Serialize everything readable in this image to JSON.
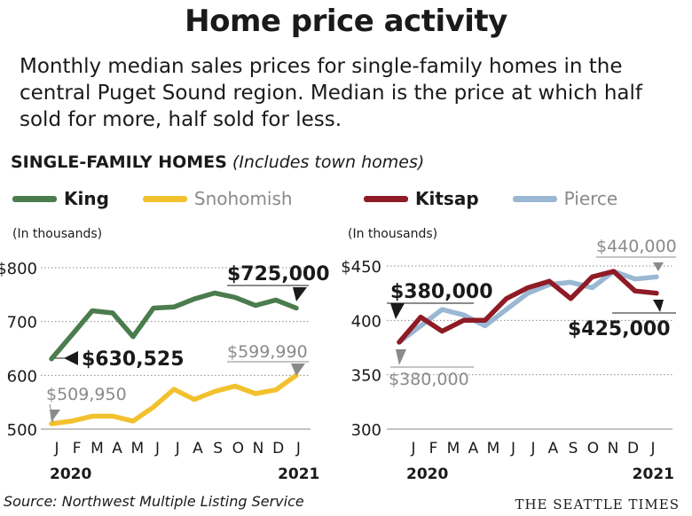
{
  "title": "Home price activity",
  "subtitle": "Monthly median sales prices for single-family homes in the central Puget Sound region. Median is the price at which half sold for more, half sold for less.",
  "section_label": "SINGLE-FAMILY HOMES",
  "section_note": "(Includes town homes)",
  "source": "Source: Northwest Multiple Listing Service",
  "brand": "THE SEATTLE TIMES",
  "colors": {
    "King": "#4a7c4e",
    "Snohomish": "#f2c12e",
    "Kitsap": "#8e1b25",
    "Pierce": "#9ab7d3",
    "grid": "#8a8a8a"
  },
  "chart_data": [
    {
      "type": "line",
      "unit_label": "(In thousands)",
      "ylim": [
        500,
        800
      ],
      "y_ticks": [
        500,
        600,
        700,
        800
      ],
      "y_tick_labels": [
        "500",
        "600",
        "700",
        "$800"
      ],
      "x": [
        "J",
        "F",
        "M",
        "A",
        "M",
        "J",
        "J",
        "A",
        "S",
        "O",
        "N",
        "D",
        "J"
      ],
      "year_labels": [
        "2020",
        "2021"
      ],
      "series": [
        {
          "name": "King",
          "values": [
            630.525,
            675,
            720,
            716,
            672,
            725,
            727,
            742,
            753,
            745,
            730,
            740,
            725
          ]
        },
        {
          "name": "Snohomish",
          "values": [
            509.95,
            515,
            524,
            524,
            515,
            541,
            574,
            555,
            570,
            580,
            566,
            573,
            599.99
          ]
        }
      ],
      "annotations": [
        {
          "series": "King",
          "point": "start",
          "label": "$630,525"
        },
        {
          "series": "King",
          "point": "end",
          "label": "$725,000"
        },
        {
          "series": "Snohomish",
          "point": "start",
          "label": "$509,950"
        },
        {
          "series": "Snohomish",
          "point": "end",
          "label": "$599,990"
        }
      ]
    },
    {
      "type": "line",
      "unit_label": "(In thousands)",
      "ylim": [
        300,
        450
      ],
      "y_ticks": [
        300,
        350,
        400,
        450
      ],
      "y_tick_labels": [
        "300",
        "350",
        "400",
        "$450"
      ],
      "x": [
        "J",
        "F",
        "M",
        "A",
        "M",
        "J",
        "J",
        "A",
        "S",
        "O",
        "N",
        "D",
        "J"
      ],
      "year_labels": [
        "2020",
        "2021"
      ],
      "series": [
        {
          "name": "Kitsap",
          "values": [
            380,
            403,
            390,
            400,
            400,
            420,
            430,
            436,
            420,
            440,
            445,
            427,
            425
          ]
        },
        {
          "name": "Pierce",
          "values": [
            380,
            395,
            410,
            405,
            395,
            410,
            425,
            433,
            435,
            430,
            445,
            438,
            440
          ]
        }
      ],
      "annotations": [
        {
          "series": "Kitsap",
          "point": "start",
          "label": "$380,000"
        },
        {
          "series": "Kitsap",
          "point": "end",
          "label": "$425,000"
        },
        {
          "series": "Pierce",
          "point": "start",
          "label": "$380,000"
        },
        {
          "series": "Pierce",
          "point": "end",
          "label": "$440,000"
        }
      ]
    }
  ]
}
